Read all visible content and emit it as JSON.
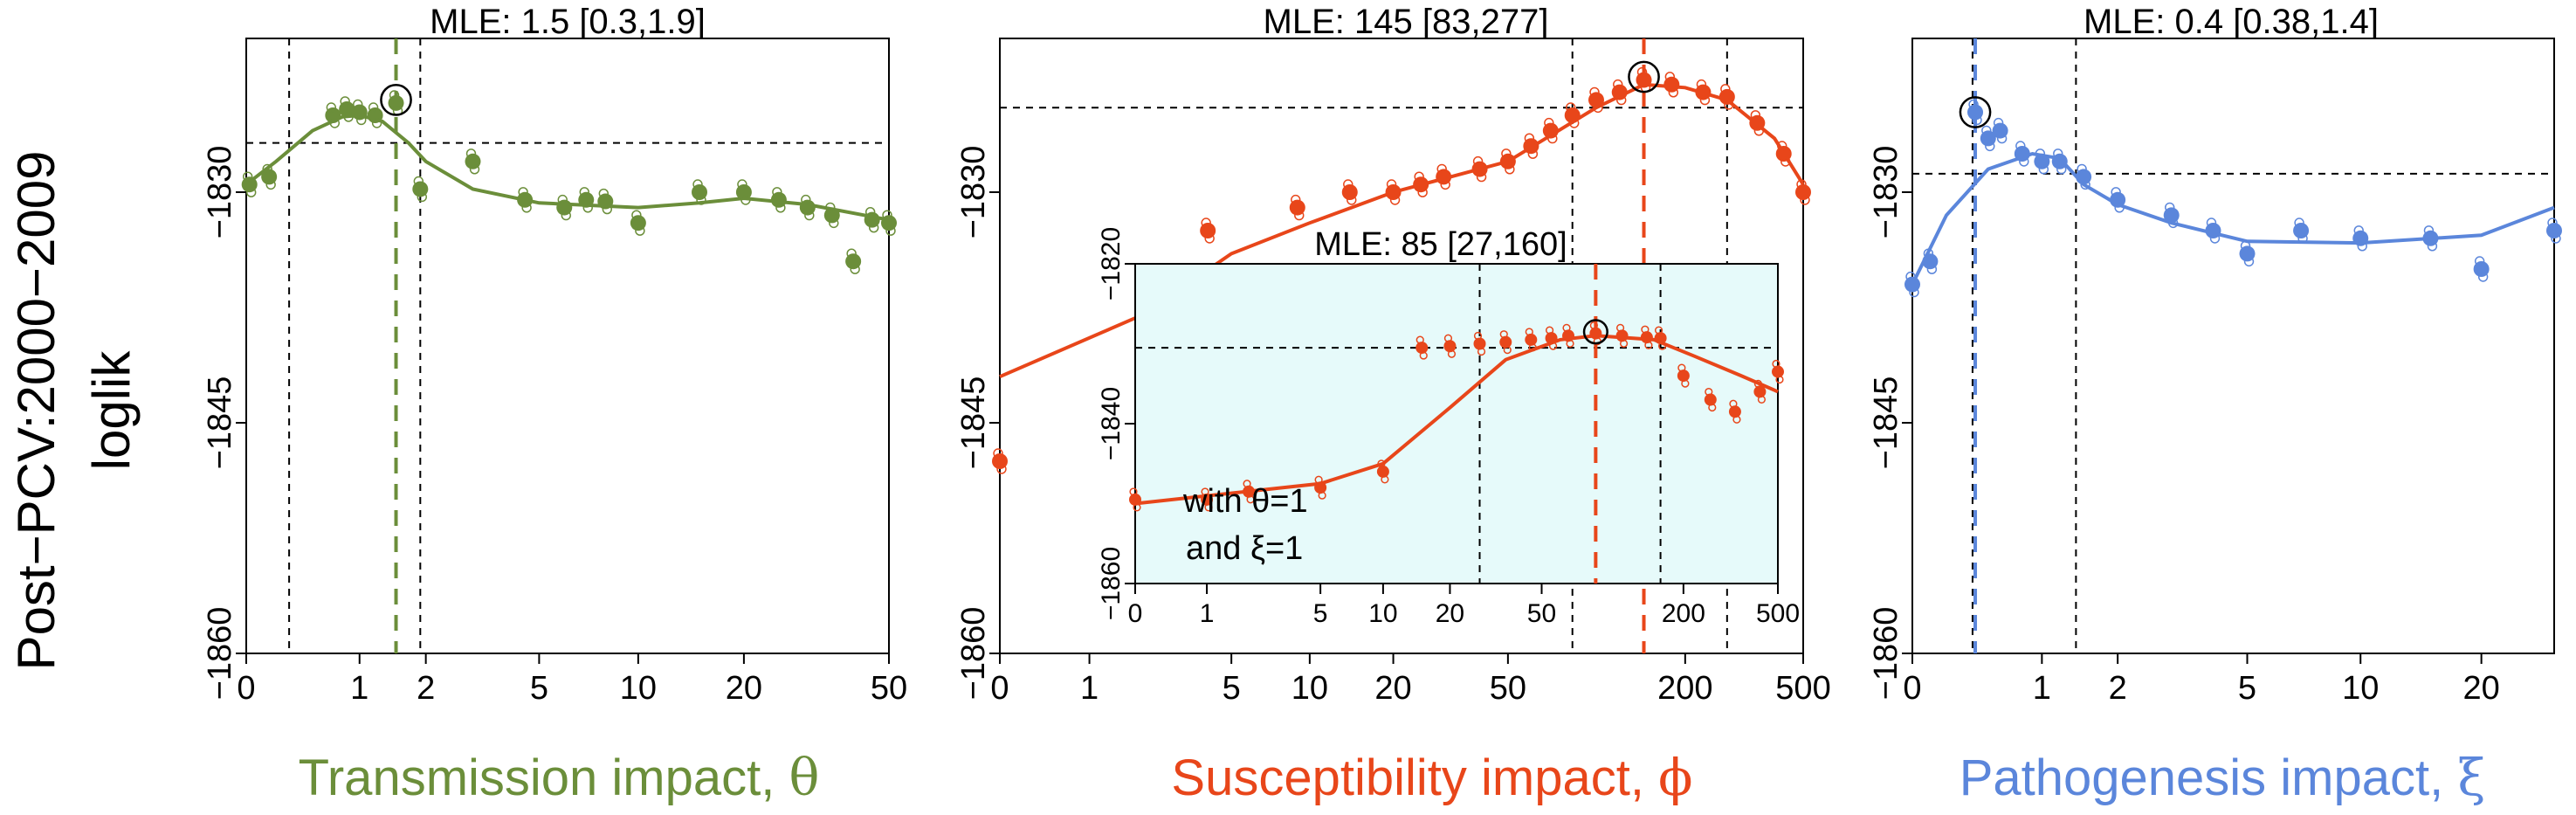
{
  "figure": {
    "row_label": "Post−PCV:2000−2009",
    "ylabel": "loglik"
  },
  "colors": {
    "transmission": "#6b8e3a",
    "susceptibility": "#e8461a",
    "pathogenesis": "#5b86db",
    "inset_bg": "#e6fafa"
  },
  "chart_data": [
    {
      "id": "transmission",
      "type": "scatter",
      "title": "MLE: 1.5 [0.3,1.9]",
      "xlabel": "Transmission impact, ",
      "xsymbol": "θ",
      "color_key": "transmission",
      "xlim": [
        0,
        50
      ],
      "ylim": [
        -1860,
        -1820
      ],
      "xticks": [
        {
          "v": 0,
          "l": "0"
        },
        {
          "v": 1,
          "l": "1"
        },
        {
          "v": 2,
          "l": "2"
        },
        {
          "v": 5,
          "l": "5"
        },
        {
          "v": 10,
          "l": "10"
        },
        {
          "v": 20,
          "l": "20"
        },
        {
          "v": 50,
          "l": "50"
        }
      ],
      "yticks": [
        {
          "v": -1830,
          "l": "−1830"
        },
        {
          "v": -1845,
          "l": "−1845"
        },
        {
          "v": -1860,
          "l": "−1860"
        }
      ],
      "mle": 1.5,
      "ci": [
        0.3,
        1.9
      ],
      "threshold": -1826.8,
      "best_loglik": -1824.0,
      "points": [
        {
          "x": 0.02,
          "y": -1829.5
        },
        {
          "x": 0.15,
          "y": -1829.0
        },
        {
          "x": 0.7,
          "y": -1825.0
        },
        {
          "x": 0.85,
          "y": -1824.6
        },
        {
          "x": 1.0,
          "y": -1824.8
        },
        {
          "x": 1.2,
          "y": -1825.0
        },
        {
          "x": 1.5,
          "y": -1824.2
        },
        {
          "x": 1.9,
          "y": -1829.8
        },
        {
          "x": 3.0,
          "y": -1828.0
        },
        {
          "x": 4.5,
          "y": -1830.5
        },
        {
          "x": 6.0,
          "y": -1831.0
        },
        {
          "x": 7.0,
          "y": -1830.5
        },
        {
          "x": 8.0,
          "y": -1830.6
        },
        {
          "x": 10.0,
          "y": -1832.0
        },
        {
          "x": 15.0,
          "y": -1830.0
        },
        {
          "x": 20.0,
          "y": -1830.0
        },
        {
          "x": 25.0,
          "y": -1830.5
        },
        {
          "x": 30.0,
          "y": -1831.0
        },
        {
          "x": 35.0,
          "y": -1831.5
        },
        {
          "x": 40.0,
          "y": -1834.5
        },
        {
          "x": 45.0,
          "y": -1831.8
        },
        {
          "x": 50.0,
          "y": -1832.0
        }
      ],
      "curve": [
        {
          "x": 0.0,
          "y": -1829.5
        },
        {
          "x": 0.2,
          "y": -1828.0
        },
        {
          "x": 0.5,
          "y": -1826.0
        },
        {
          "x": 0.8,
          "y": -1825.1
        },
        {
          "x": 1.0,
          "y": -1825.0
        },
        {
          "x": 1.3,
          "y": -1825.4
        },
        {
          "x": 1.7,
          "y": -1826.8
        },
        {
          "x": 2.0,
          "y": -1828.0
        },
        {
          "x": 3.0,
          "y": -1829.8
        },
        {
          "x": 5.0,
          "y": -1830.7
        },
        {
          "x": 10.0,
          "y": -1831.0
        },
        {
          "x": 15.0,
          "y": -1830.7
        },
        {
          "x": 20.0,
          "y": -1830.4
        },
        {
          "x": 30.0,
          "y": -1830.8
        },
        {
          "x": 50.0,
          "y": -1831.8
        }
      ]
    },
    {
      "id": "susceptibility",
      "type": "scatter",
      "title": "MLE: 145 [83,277]",
      "xlabel": "Susceptibility impact, ",
      "xsymbol": "ϕ",
      "color_key": "susceptibility",
      "xlim": [
        0,
        500
      ],
      "ylim": [
        -1860,
        -1820
      ],
      "xticks": [
        {
          "v": 0,
          "l": "0"
        },
        {
          "v": 1,
          "l": "1"
        },
        {
          "v": 5,
          "l": "5"
        },
        {
          "v": 10,
          "l": "10"
        },
        {
          "v": 20,
          "l": "20"
        },
        {
          "v": 50,
          "l": "50"
        },
        {
          "v": 200,
          "l": "200"
        },
        {
          "v": 500,
          "l": "500"
        }
      ],
      "yticks": [
        {
          "v": -1830,
          "l": "−1830"
        },
        {
          "v": -1845,
          "l": "−1845"
        },
        {
          "v": -1860,
          "l": "−1860"
        }
      ],
      "mle": 145,
      "ci": [
        83,
        277
      ],
      "threshold": -1824.5,
      "best_loglik": -1822.5,
      "points": [
        {
          "x": 0.0,
          "y": -1847.5
        },
        {
          "x": 4.0,
          "y": -1832.5
        },
        {
          "x": 9.0,
          "y": -1831.0
        },
        {
          "x": 14.0,
          "y": -1830.0
        },
        {
          "x": 20.0,
          "y": -1830.0
        },
        {
          "x": 25.0,
          "y": -1829.5
        },
        {
          "x": 30.0,
          "y": -1829.0
        },
        {
          "x": 40.0,
          "y": -1828.5
        },
        {
          "x": 50.0,
          "y": -1828.0
        },
        {
          "x": 60.0,
          "y": -1827.0
        },
        {
          "x": 70.0,
          "y": -1826.0
        },
        {
          "x": 83.0,
          "y": -1825.0
        },
        {
          "x": 100.0,
          "y": -1824.0
        },
        {
          "x": 120.0,
          "y": -1823.5
        },
        {
          "x": 145.0,
          "y": -1822.7
        },
        {
          "x": 180.0,
          "y": -1823.0
        },
        {
          "x": 230.0,
          "y": -1823.5
        },
        {
          "x": 277.0,
          "y": -1823.8
        },
        {
          "x": 350.0,
          "y": -1825.5
        },
        {
          "x": 430.0,
          "y": -1827.5
        },
        {
          "x": 500.0,
          "y": -1830.0
        }
      ],
      "curve": [
        {
          "x": 0.0,
          "y": -1842.0
        },
        {
          "x": 2.0,
          "y": -1838.0
        },
        {
          "x": 5.0,
          "y": -1834.0
        },
        {
          "x": 10.0,
          "y": -1832.0
        },
        {
          "x": 20.0,
          "y": -1830.0
        },
        {
          "x": 50.0,
          "y": -1828.0
        },
        {
          "x": 100.0,
          "y": -1824.5
        },
        {
          "x": 145.0,
          "y": -1823.0
        },
        {
          "x": 200.0,
          "y": -1823.2
        },
        {
          "x": 277.0,
          "y": -1824.0
        },
        {
          "x": 400.0,
          "y": -1826.5
        },
        {
          "x": 500.0,
          "y": -1829.5
        }
      ],
      "inset": {
        "title": "MLE: 85 [27,160]",
        "annotation_line1": "with θ=1",
        "annotation_line2": "and ξ=1",
        "xlim": [
          0,
          500
        ],
        "ylim": [
          -1860,
          -1820
        ],
        "xticks": [
          {
            "v": 0,
            "l": "0"
          },
          {
            "v": 1,
            "l": "1"
          },
          {
            "v": 5,
            "l": "5"
          },
          {
            "v": 10,
            "l": "10"
          },
          {
            "v": 20,
            "l": "20"
          },
          {
            "v": 50,
            "l": "50"
          },
          {
            "v": 200,
            "l": "200"
          },
          {
            "v": 500,
            "l": "500"
          }
        ],
        "yticks": [
          {
            "v": -1820,
            "l": "−1820"
          },
          {
            "v": -1840,
            "l": "−1840"
          },
          {
            "v": -1860,
            "l": "−1860"
          }
        ],
        "mle": 85,
        "ci": [
          27,
          160
        ],
        "threshold": -1830.5,
        "best_loglik": -1828.5,
        "points": [
          {
            "x": 0.0,
            "y": -1849.5
          },
          {
            "x": 1.0,
            "y": -1849.5
          },
          {
            "x": 2.0,
            "y": -1848.5
          },
          {
            "x": 5.0,
            "y": -1848.0
          },
          {
            "x": 10.0,
            "y": -1846.0
          },
          {
            "x": 15.0,
            "y": -1830.5
          },
          {
            "x": 20.0,
            "y": -1830.3
          },
          {
            "x": 27.0,
            "y": -1830.0
          },
          {
            "x": 35.0,
            "y": -1829.8
          },
          {
            "x": 45.0,
            "y": -1829.5
          },
          {
            "x": 55.0,
            "y": -1829.3
          },
          {
            "x": 65.0,
            "y": -1829.0
          },
          {
            "x": 85.0,
            "y": -1828.7
          },
          {
            "x": 110.0,
            "y": -1829.0
          },
          {
            "x": 140.0,
            "y": -1829.2
          },
          {
            "x": 160.0,
            "y": -1829.3
          },
          {
            "x": 200.0,
            "y": -1834.0
          },
          {
            "x": 260.0,
            "y": -1837.0
          },
          {
            "x": 330.0,
            "y": -1838.5
          },
          {
            "x": 420.0,
            "y": -1836.0
          },
          {
            "x": 500.0,
            "y": -1833.5
          }
        ],
        "curve": [
          {
            "x": 0.0,
            "y": -1850.0
          },
          {
            "x": 5.0,
            "y": -1847.5
          },
          {
            "x": 10.0,
            "y": -1845.0
          },
          {
            "x": 20.0,
            "y": -1838.0
          },
          {
            "x": 35.0,
            "y": -1832.0
          },
          {
            "x": 60.0,
            "y": -1829.5
          },
          {
            "x": 85.0,
            "y": -1829.0
          },
          {
            "x": 150.0,
            "y": -1829.5
          },
          {
            "x": 220.0,
            "y": -1831.5
          },
          {
            "x": 350.0,
            "y": -1834.0
          },
          {
            "x": 500.0,
            "y": -1836.0
          }
        ]
      }
    },
    {
      "id": "pathogenesis",
      "type": "scatter",
      "title": "MLE: 0.4 [0.38,1.4]",
      "xlabel": "Pathogenesis impact, ",
      "xsymbol": "ξ",
      "color_key": "pathogenesis",
      "xlim": [
        0,
        30
      ],
      "ylim": [
        -1860,
        -1820
      ],
      "xticks": [
        {
          "v": 0,
          "l": "0"
        },
        {
          "v": 1,
          "l": "1"
        },
        {
          "v": 2,
          "l": "2"
        },
        {
          "v": 5,
          "l": "5"
        },
        {
          "v": 10,
          "l": "10"
        },
        {
          "v": 20,
          "l": "20"
        }
      ],
      "yticks": [
        {
          "v": -1830,
          "l": "−1830"
        },
        {
          "v": -1845,
          "l": "−1845"
        },
        {
          "v": -1860,
          "l": "−1860"
        }
      ],
      "mle": 0.4,
      "ci": [
        0.38,
        1.4
      ],
      "threshold": -1828.8,
      "best_loglik": -1824.8,
      "points": [
        {
          "x": 0.0,
          "y": -1836.0
        },
        {
          "x": 0.1,
          "y": -1834.5
        },
        {
          "x": 0.4,
          "y": -1824.8
        },
        {
          "x": 0.5,
          "y": -1826.5
        },
        {
          "x": 0.6,
          "y": -1826.0
        },
        {
          "x": 0.8,
          "y": -1827.5
        },
        {
          "x": 1.0,
          "y": -1828.0
        },
        {
          "x": 1.2,
          "y": -1828.0
        },
        {
          "x": 1.5,
          "y": -1829.0
        },
        {
          "x": 2.0,
          "y": -1830.5
        },
        {
          "x": 3.0,
          "y": -1831.5
        },
        {
          "x": 4.0,
          "y": -1832.5
        },
        {
          "x": 5.0,
          "y": -1834.0
        },
        {
          "x": 7.0,
          "y": -1832.5
        },
        {
          "x": 10.0,
          "y": -1833.0
        },
        {
          "x": 15.0,
          "y": -1833.0
        },
        {
          "x": 20.0,
          "y": -1835.0
        },
        {
          "x": 30.0,
          "y": -1832.5
        }
      ],
      "curve": [
        {
          "x": 0.0,
          "y": -1836.0
        },
        {
          "x": 0.2,
          "y": -1831.5
        },
        {
          "x": 0.5,
          "y": -1828.5
        },
        {
          "x": 0.9,
          "y": -1827.5
        },
        {
          "x": 1.2,
          "y": -1827.8
        },
        {
          "x": 1.5,
          "y": -1829.5
        },
        {
          "x": 2.0,
          "y": -1830.8
        },
        {
          "x": 3.0,
          "y": -1832.0
        },
        {
          "x": 5.0,
          "y": -1833.2
        },
        {
          "x": 10.0,
          "y": -1833.3
        },
        {
          "x": 20.0,
          "y": -1832.8
        },
        {
          "x": 30.0,
          "y": -1831.0
        }
      ]
    }
  ]
}
